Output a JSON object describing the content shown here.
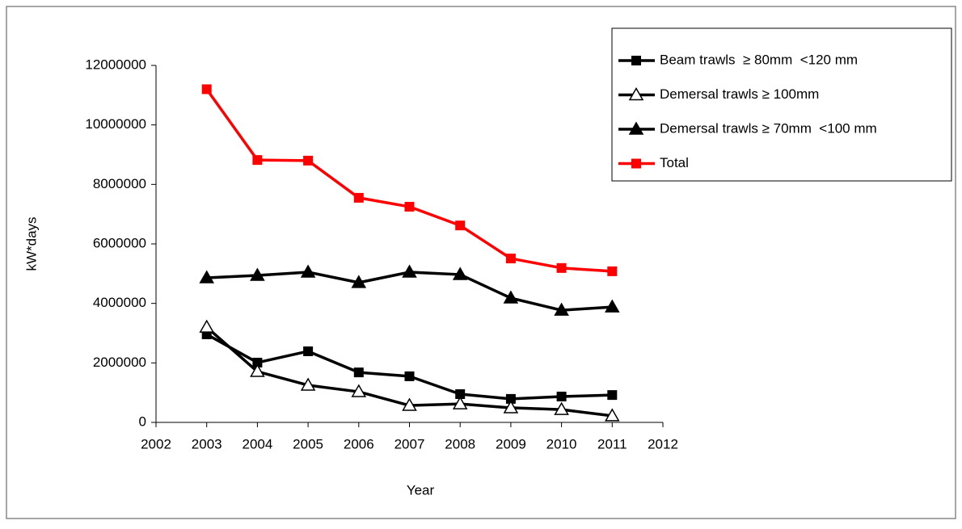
{
  "chart_data": {
    "type": "line",
    "x_label": "Year",
    "y_label": "kW*days",
    "x": [
      2003,
      2004,
      2005,
      2006,
      2007,
      2008,
      2009,
      2010,
      2011
    ],
    "xlim": [
      2002,
      2012
    ],
    "xticks": [
      2002,
      2003,
      2004,
      2005,
      2006,
      2007,
      2008,
      2009,
      2010,
      2011,
      2012
    ],
    "ylim": [
      0,
      12000000
    ],
    "yticks": [
      0,
      2000000,
      4000000,
      6000000,
      8000000,
      10000000,
      12000000
    ],
    "grid": false,
    "legend": "top-right",
    "series": [
      {
        "name": "Beam trawls  ≥ 80mm  <120 mm",
        "color": "#000000",
        "marker": "square",
        "values": [
          2960000,
          2010000,
          2390000,
          1680000,
          1550000,
          950000,
          790000,
          870000,
          920000
        ]
      },
      {
        "name": "Demersal trawls ≥ 100mm",
        "color": "#000000",
        "marker": "open-triangle",
        "values": [
          3200000,
          1710000,
          1250000,
          1030000,
          570000,
          620000,
          490000,
          430000,
          220000
        ]
      },
      {
        "name": "Demersal trawls ≥ 70mm  <100 mm",
        "color": "#000000",
        "marker": "triangle",
        "values": [
          4860000,
          4940000,
          5050000,
          4700000,
          5050000,
          4970000,
          4180000,
          3770000,
          3880000
        ]
      },
      {
        "name": "Total",
        "color": "#ff0000",
        "marker": "square",
        "values": [
          11200000,
          8820000,
          8800000,
          7550000,
          7250000,
          6620000,
          5510000,
          5190000,
          5080000
        ]
      }
    ]
  }
}
